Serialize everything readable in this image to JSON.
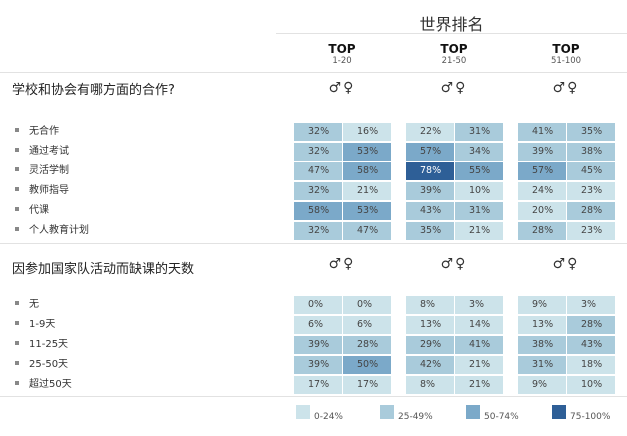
{
  "header": {
    "title": "世界排名",
    "columns": [
      {
        "top": "TOP",
        "range": "1-20"
      },
      {
        "top": "TOP",
        "range": "21-50"
      },
      {
        "top": "TOP",
        "range": "51-100"
      }
    ],
    "gender_symbols": "♂♀"
  },
  "chart_data": [
    {
      "type": "heatmap",
      "title": "学校和协会有哪方面的合作?",
      "column_groups": [
        "TOP 1-20",
        "TOP 21-50",
        "TOP 51-100"
      ],
      "sub_columns": [
        "♂",
        "♀"
      ],
      "rows": [
        {
          "label": "无合作",
          "values": [
            [
              32,
              16
            ],
            [
              22,
              31
            ],
            [
              41,
              35
            ]
          ]
        },
        {
          "label": "通过考试",
          "values": [
            [
              32,
              53
            ],
            [
              57,
              34
            ],
            [
              39,
              38
            ]
          ]
        },
        {
          "label": "灵活学制",
          "values": [
            [
              47,
              58
            ],
            [
              78,
              55
            ],
            [
              57,
              45
            ]
          ]
        },
        {
          "label": "教师指导",
          "values": [
            [
              32,
              21
            ],
            [
              39,
              10
            ],
            [
              24,
              23
            ]
          ]
        },
        {
          "label": "代课",
          "values": [
            [
              58,
              53
            ],
            [
              43,
              31
            ],
            [
              20,
              28
            ]
          ]
        },
        {
          "label": "个人教育计划",
          "values": [
            [
              32,
              47
            ],
            [
              35,
              21
            ],
            [
              28,
              23
            ]
          ]
        }
      ]
    },
    {
      "type": "heatmap",
      "title": "因参加国家队活动而缺课的天数",
      "column_groups": [
        "TOP 1-20",
        "TOP 21-50",
        "TOP 51-100"
      ],
      "sub_columns": [
        "♂",
        "♀"
      ],
      "rows": [
        {
          "label": "无",
          "values": [
            [
              0,
              0
            ],
            [
              8,
              3
            ],
            [
              9,
              3
            ]
          ]
        },
        {
          "label": "1-9天",
          "values": [
            [
              6,
              6
            ],
            [
              13,
              14
            ],
            [
              13,
              28
            ]
          ]
        },
        {
          "label": "11-25天",
          "values": [
            [
              39,
              28
            ],
            [
              29,
              41
            ],
            [
              38,
              43
            ]
          ]
        },
        {
          "label": "25-50天",
          "values": [
            [
              39,
              50
            ],
            [
              42,
              21
            ],
            [
              31,
              18
            ]
          ]
        },
        {
          "label": "超过50天",
          "values": [
            [
              17,
              17
            ],
            [
              8,
              21
            ],
            [
              9,
              10
            ]
          ]
        }
      ]
    }
  ],
  "legend": [
    {
      "label": "0-24%",
      "color": "#cce3ea"
    },
    {
      "label": "25-49%",
      "color": "#a9cbdb"
    },
    {
      "label": "50-74%",
      "color": "#7ba9c9"
    },
    {
      "label": "75-100%",
      "color": "#2e5f97"
    }
  ],
  "percent_suffix": "%"
}
